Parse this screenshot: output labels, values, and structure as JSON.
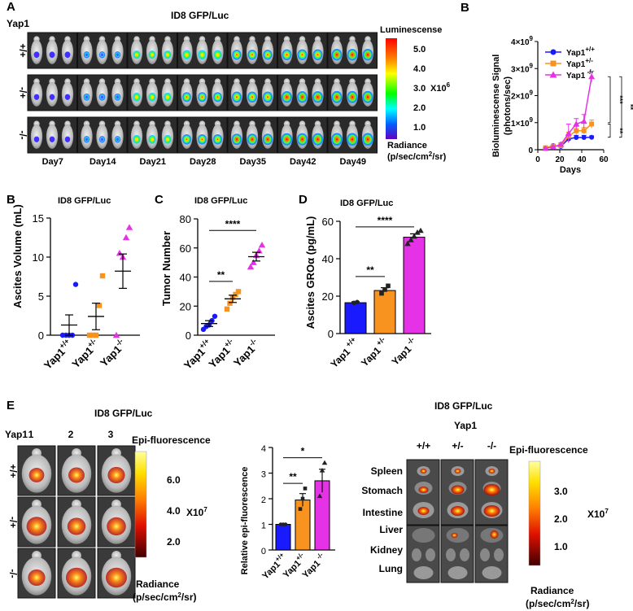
{
  "panelA": {
    "letter": "A",
    "title": "ID8 GFP/Luc",
    "gene": "Yap1",
    "rows": [
      "+/+",
      "-/+",
      "-/-"
    ],
    "days": [
      "Day7",
      "Day14",
      "Day21",
      "Day28",
      "Day35",
      "Day42",
      "Day49"
    ],
    "scale_title": "Luminescense",
    "scale_ticks": [
      "5.0",
      "4.0",
      "3.0",
      "2.0",
      "1.0"
    ],
    "scale_mult": "X10",
    "scale_exp": "6",
    "radiance_title": "Radiance",
    "radiance_unit_a": "(p/sec/cm",
    "radiance_unit_sup": "2",
    "radiance_unit_b": "/sr)"
  },
  "panelB_top": {
    "letter": "B",
    "ylabel1": "Bioluminescense Signal",
    "ylabel2": "(photons/sec)",
    "xlabel": "Days",
    "legend": [
      {
        "base": "Yap1",
        "sup": "+/+",
        "color": "#1a1aff",
        "marker": "circle"
      },
      {
        "base": "Yap1",
        "sup": "+/-",
        "color": "#f7931e",
        "marker": "square"
      },
      {
        "base": "Yap1",
        "sup": " -/-",
        "color": "#e632e6",
        "marker": "triangle"
      }
    ],
    "sig": [
      "**",
      "***",
      "**"
    ]
  },
  "panelB": {
    "letter": "B",
    "title": "ID8 GFP/Luc",
    "ylabel": "Ascites Volume (mL)",
    "xticks": [
      {
        "base": "Yap1",
        "sup": "+/+"
      },
      {
        "base": "Yap1",
        "sup": "+/-"
      },
      {
        "base": "Yap1",
        "sup": "-/-"
      }
    ]
  },
  "panelC": {
    "letter": "C",
    "title": "ID8 GFP/Luc",
    "ylabel": "Tumor Number",
    "sig": [
      "**",
      "****"
    ],
    "xticks": [
      {
        "base": "Yap1",
        "sup": "+/+"
      },
      {
        "base": "Yap1",
        "sup": "+/-"
      },
      {
        "base": "Yap1",
        "sup": "-/-"
      }
    ]
  },
  "panelD": {
    "letter": "D",
    "title": "ID8 GFP/Luc",
    "ylabel": "Ascites GROα (pg/mL)",
    "sig": [
      "**",
      "****"
    ],
    "xticks": [
      {
        "base": "Yap1",
        "sup": " +/+"
      },
      {
        "base": "Yap1",
        "sup": " +/-"
      },
      {
        "base": "Yap1",
        "sup": " -/-"
      }
    ]
  },
  "panelE": {
    "letter": "E",
    "title_left": "ID8 GFP/Luc",
    "gene": "Yap1",
    "cols": [
      "1",
      "2",
      "3"
    ],
    "rows": [
      "+/+",
      "-/+",
      "-/-"
    ],
    "scale_title": "Epi-fluorescence",
    "scale_ticks": [
      "6.0",
      "4.0",
      "2.0"
    ],
    "scale_mult": "X10",
    "scale_exp": "7",
    "radiance_title": "Radiance",
    "radiance_unit_a": "(p/sec/cm",
    "radiance_unit_sup": "2",
    "radiance_unit_b": "/sr)",
    "bar_ylabel": "Relative epi-fluorescence",
    "bar_sig": [
      "**",
      "*"
    ],
    "bar_xticks": [
      {
        "base": "Yap1",
        "sup": "+/+"
      },
      {
        "base": "Yap1",
        "sup": "+/-"
      },
      {
        "base": "Yap1",
        "sup": " -/-"
      }
    ],
    "title_right": "ID8 GFP/Luc",
    "gene_right": "Yap1",
    "cols_right": [
      "+/+",
      "+/-",
      "-/-"
    ],
    "organs": [
      "Spleen",
      "Stomach",
      "Intestine",
      "Liver",
      "Kidney",
      "Lung"
    ],
    "scale2_title": "Epi-fluorescence",
    "scale2_ticks": [
      "3.0",
      "2.0",
      "1.0"
    ],
    "scale2_mult": "X10",
    "scale2_exp": "7",
    "radiance2_title": "Radiance",
    "radiance2_unit_a": "(p/sec/cm",
    "radiance2_unit_sup": "2",
    "radiance2_unit_b": "/sr)"
  },
  "chart_data": [
    {
      "type": "line",
      "panel": "B (top)",
      "xlabel": "Days",
      "ylabel": "Bioluminescense Signal (photons/sec)",
      "xlim": [
        0,
        60
      ],
      "ylim": [
        0,
        4000000000
      ],
      "xticks": [
        0,
        20,
        40,
        60
      ],
      "yticks": [
        0,
        1000000000,
        2000000000,
        3000000000,
        4000000000
      ],
      "ytick_labels": [
        {
          "base": "0"
        },
        {
          "base": "1×10",
          "sup": "9"
        },
        {
          "base": "2×10",
          "sup": "9"
        },
        {
          "base": "3×10",
          "sup": "9"
        },
        {
          "base": "4×10",
          "sup": "9"
        }
      ],
      "x": [
        7,
        14,
        21,
        28,
        35,
        42,
        49
      ],
      "series": [
        {
          "name": "Yap1+/+",
          "values": [
            60000000,
            150000000,
            120000000,
            400000000,
            450000000,
            450000000,
            460000000
          ],
          "err": [
            20000000,
            30000000,
            30000000,
            80000000,
            80000000,
            80000000,
            50000000
          ]
        },
        {
          "name": "Yap1+/-",
          "values": [
            70000000,
            130000000,
            150000000,
            500000000,
            700000000,
            700000000,
            950000000
          ],
          "err": [
            20000000,
            30000000,
            40000000,
            150000000,
            150000000,
            120000000,
            150000000
          ]
        },
        {
          "name": "Yap1 -/-",
          "values": [
            50000000,
            100000000,
            200000000,
            600000000,
            950000000,
            1050000000,
            2700000000
          ],
          "err": [
            20000000,
            40000000,
            60000000,
            350000000,
            200000000,
            250000000,
            200000000
          ]
        }
      ]
    },
    {
      "type": "scatter",
      "panel": "B",
      "title": "ID8 GFP/Luc",
      "ylabel": "Ascites Volume (mL)",
      "ylim": [
        0,
        15
      ],
      "yticks": [
        0,
        5,
        10,
        15
      ],
      "categories": [
        "Yap1+/+",
        "Yap1+/-",
        "Yap1-/-"
      ],
      "points": [
        [
          0,
          0,
          0,
          0,
          6.5
        ],
        [
          0,
          0,
          0,
          3.8,
          7.6
        ],
        [
          0,
          10.5,
          10.0,
          12.5,
          13.8
        ]
      ],
      "means": [
        1.3,
        2.4,
        8.2
      ],
      "sem": [
        1.3,
        1.7,
        2.2
      ]
    },
    {
      "type": "scatter",
      "panel": "C",
      "title": "ID8 GFP/Luc",
      "ylabel": "Tumor Number",
      "ylim": [
        0,
        80
      ],
      "yticks": [
        0,
        20,
        40,
        60,
        80
      ],
      "categories": [
        "Yap1+/+",
        "Yap1+/-",
        "Yap1-/-"
      ],
      "points": [
        [
          4,
          6,
          7,
          10,
          13
        ],
        [
          18,
          22,
          26,
          28,
          30
        ],
        [
          47,
          50,
          55,
          58,
          62
        ]
      ],
      "means": [
        8,
        25,
        54
      ],
      "sem": [
        2,
        2.5,
        3
      ]
    },
    {
      "type": "bar",
      "panel": "D",
      "title": "ID8 GFP/Luc",
      "ylabel": "Ascites GROα (pg/mL)",
      "ylim": [
        0,
        60
      ],
      "yticks": [
        0,
        20,
        40,
        60
      ],
      "categories": [
        "Yap1+/+",
        "Yap1+/-",
        "Yap1-/-"
      ],
      "values": [
        16.5,
        23,
        51.5
      ],
      "err": [
        0.5,
        1.5,
        1.8
      ],
      "colors": [
        "#1a1aff",
        "#f7931e",
        "#e632e6"
      ],
      "points": [
        [
          16.4,
          16.8
        ],
        [
          21.5,
          23.5,
          25.5
        ],
        [
          48,
          50,
          52,
          54,
          55
        ]
      ]
    },
    {
      "type": "bar",
      "panel": "E",
      "ylabel": "Relative epi-fluorescence",
      "ylim": [
        0,
        4
      ],
      "yticks": [
        0,
        1,
        2,
        3,
        4
      ],
      "categories": [
        "Yap1+/+",
        "Yap1+/-",
        "Yap1-/-"
      ],
      "values": [
        1.0,
        1.95,
        2.7
      ],
      "err": [
        0.02,
        0.25,
        0.45
      ],
      "colors": [
        "#1a1aff",
        "#f7931e",
        "#e632e6"
      ],
      "points": [
        [
          1.0,
          1.0,
          1.0
        ],
        [
          1.6,
          2.0,
          2.4
        ],
        [
          2.1,
          3.1,
          3.4
        ]
      ]
    }
  ]
}
